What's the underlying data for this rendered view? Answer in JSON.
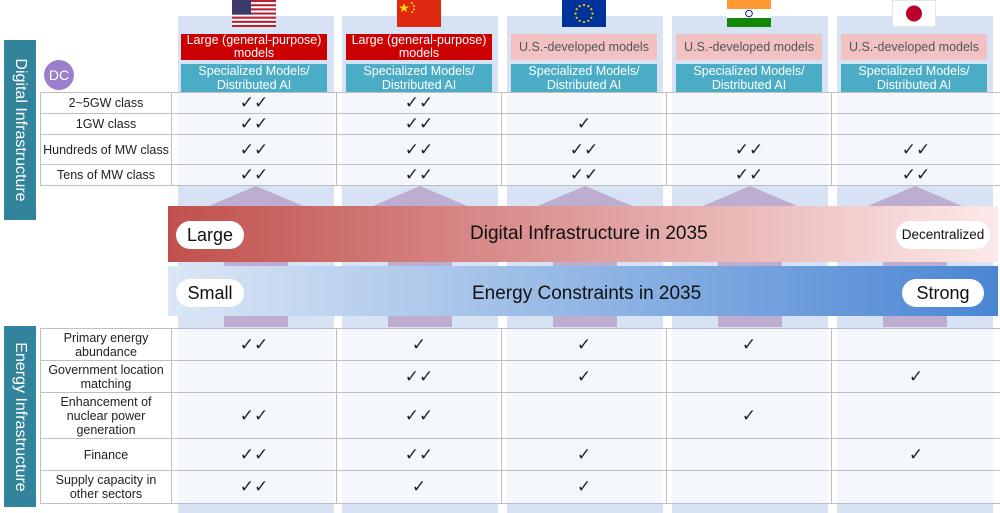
{
  "section_labels": {
    "digital": "Digital Infrastructure",
    "energy": "Energy Infrastructure"
  },
  "dc_badge": "DC",
  "columns": [
    {
      "country": "United States",
      "flag": "us-flag",
      "top_model": "Large (general-purpose) models",
      "top_style": "red",
      "specialized": "Specialized Models/ Distributed AI"
    },
    {
      "country": "China",
      "flag": "china-flag",
      "top_model": "Large (general-purpose) models",
      "top_style": "red",
      "specialized": "Specialized Models/ Distributed AI"
    },
    {
      "country": "European Union",
      "flag": "eu-flag",
      "top_model": "U.S.-developed models",
      "top_style": "pink",
      "specialized": "Specialized Models/ Distributed AI"
    },
    {
      "country": "India",
      "flag": "india-flag",
      "top_model": "U.S.-developed models",
      "top_style": "pink",
      "specialized": "Specialized Models/ Distributed AI"
    },
    {
      "country": "Japan",
      "flag": "japan-flag",
      "top_model": "U.S.-developed models",
      "top_style": "pink",
      "specialized": "Specialized Models/ Distributed AI"
    }
  ],
  "digital_rows": [
    {
      "label": "2~5GW class",
      "marks": [
        "✓✓",
        "✓✓",
        "",
        "",
        ""
      ]
    },
    {
      "label": "1GW class",
      "marks": [
        "✓✓",
        "✓✓",
        "✓",
        "",
        ""
      ]
    },
    {
      "label": "Hundreds of MW class",
      "marks": [
        "✓✓",
        "✓✓",
        "✓✓",
        "✓✓",
        "✓✓"
      ]
    },
    {
      "label": "Tens of MW class",
      "marks": [
        "✓✓",
        "✓✓",
        "✓✓",
        "✓✓",
        "✓✓"
      ]
    }
  ],
  "digital_band": {
    "title": "Digital Infrastructure in 2035",
    "left": "Large",
    "right": "Decentralized",
    "color_left": "#c0504d",
    "color_right": "#fde9e9"
  },
  "energy_band": {
    "title": "Energy Constraints in 2035",
    "left": "Small",
    "right": "Strong",
    "color_left": "#dbe7f5",
    "color_right": "#4a86d4"
  },
  "energy_rows": [
    {
      "label": "Primary energy abundance",
      "marks": [
        "✓✓",
        "✓",
        "✓",
        "✓",
        ""
      ]
    },
    {
      "label": "Government location matching",
      "marks": [
        "",
        "✓✓",
        "✓",
        "",
        "✓"
      ]
    },
    {
      "label": "Enhancement of nuclear power generation",
      "marks": [
        "✓✓",
        "✓✓",
        "",
        "✓",
        ""
      ]
    },
    {
      "label": "Finance",
      "marks": [
        "✓✓",
        "✓✓",
        "✓",
        "",
        "✓"
      ]
    },
    {
      "label": "Supply capacity in other sectors",
      "marks": [
        "✓✓",
        "✓",
        "✓",
        "",
        ""
      ]
    }
  ]
}
